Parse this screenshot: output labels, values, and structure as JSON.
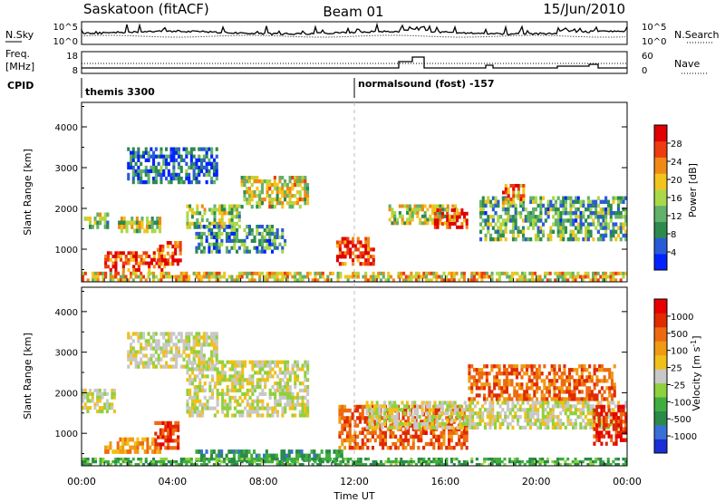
{
  "header": {
    "site": "Saskatoon (fitACF)",
    "beam": "Beam 01",
    "date": "15/Jun/2010"
  },
  "top_panels": {
    "nsky_label": "N.Sky",
    "nsky_ticks": [
      "10^5",
      "10^0"
    ],
    "nsearch_label": "N.Search",
    "freq_label_1": "Freq.",
    "freq_label_2": "[MHz]",
    "freq_ticks": [
      "18",
      "8"
    ],
    "nave_label": "Nave",
    "nave_ticks": [
      "60",
      "0"
    ],
    "cpid_label": "CPID",
    "cpid_1": "themis 3300",
    "cpid_2": "normalsound (fost) -157"
  },
  "chart_data": [
    {
      "type": "heatmap",
      "name": "power",
      "ylabel": "Slant Range [km]",
      "ylim": [
        200,
        4600
      ],
      "yticks": [
        1000,
        2000,
        3000,
        4000
      ],
      "xlim": [
        0,
        24
      ],
      "colorbar": {
        "label": "Power [dB]",
        "ticks": [
          "4",
          "8",
          "12",
          "16",
          "20",
          "24",
          "28"
        ],
        "colors": [
          "#0022ff",
          "#2a5bd6",
          "#2c8a4e",
          "#62b06a",
          "#a9d94a",
          "#f2c41d",
          "#f08a14",
          "#ee3b10",
          "#e00000"
        ]
      },
      "echo_regions": [
        {
          "t0": 0.1,
          "t1": 1.2,
          "r0": 1500,
          "r1": 1900,
          "level": 0.45
        },
        {
          "t0": 1.0,
          "t1": 3.7,
          "r0": 450,
          "r1": 950,
          "level": 0.85
        },
        {
          "t0": 3.3,
          "t1": 4.4,
          "r0": 600,
          "r1": 1200,
          "level": 0.9
        },
        {
          "t0": 1.6,
          "t1": 3.5,
          "r0": 1400,
          "r1": 1800,
          "level": 0.5
        },
        {
          "t0": 4.6,
          "t1": 7.0,
          "r0": 1500,
          "r1": 2100,
          "level": 0.45
        },
        {
          "t0": 7.0,
          "t1": 10.0,
          "r0": 2000,
          "r1": 2800,
          "level": 0.55
        },
        {
          "t0": 5.0,
          "t1": 9.0,
          "r0": 900,
          "r1": 1600,
          "level": 0.3
        },
        {
          "t0": 11.2,
          "t1": 12.9,
          "r0": 600,
          "r1": 1300,
          "level": 0.9
        },
        {
          "t0": 13.5,
          "t1": 16.5,
          "r0": 1600,
          "r1": 2100,
          "level": 0.5
        },
        {
          "t0": 15.5,
          "t1": 17.0,
          "r0": 1500,
          "r1": 2000,
          "level": 0.85
        },
        {
          "t0": 17.5,
          "t1": 24.0,
          "r0": 1200,
          "r1": 2300,
          "level": 0.35
        },
        {
          "t0": 18.5,
          "t1": 19.5,
          "r0": 2100,
          "r1": 2600,
          "level": 0.75
        },
        {
          "t0": 0.0,
          "t1": 24.0,
          "r0": 200,
          "r1": 450,
          "level": 0.6
        },
        {
          "t0": 2.0,
          "t1": 6.0,
          "r0": 2600,
          "r1": 3500,
          "level": 0.2
        }
      ]
    },
    {
      "type": "heatmap",
      "name": "velocity",
      "ylabel": "Slant Range [km]",
      "xlabel": "Time UT",
      "ylim": [
        200,
        4600
      ],
      "yticks": [
        1000,
        2000,
        3000,
        4000
      ],
      "xlim": [
        0,
        24
      ],
      "xticks": [
        "00:00",
        "04:00",
        "08:00",
        "12:00",
        "16:00",
        "20:00",
        "00:00"
      ],
      "colorbar": {
        "label": "Velocity [m s",
        "label_sup": "-1",
        "label_end": "]",
        "ticks": [
          "1000",
          "500",
          "100",
          "25",
          "-25",
          "-100",
          "-500",
          "-1000"
        ],
        "colors": [
          "#1a2fd6",
          "#3a6fd8",
          "#2a8a48",
          "#3fae3f",
          "#8fd13c",
          "#c8c8c8",
          "#f0c018",
          "#f09a14",
          "#ee6a10",
          "#e02a00",
          "#e80000"
        ]
      },
      "echo_regions": [
        {
          "t0": 0.0,
          "t1": 1.5,
          "r0": 1500,
          "r1": 2100,
          "vel": 0.5
        },
        {
          "t0": 1.0,
          "t1": 3.5,
          "r0": 500,
          "r1": 900,
          "vel": 0.68
        },
        {
          "t0": 3.2,
          "t1": 4.3,
          "r0": 600,
          "r1": 1300,
          "vel": 0.85
        },
        {
          "t0": 4.6,
          "t1": 10.0,
          "r0": 1400,
          "r1": 2800,
          "vel": 0.5
        },
        {
          "t0": 5.0,
          "t1": 11.5,
          "r0": 300,
          "r1": 600,
          "vel": 0.25
        },
        {
          "t0": 11.3,
          "t1": 17.0,
          "r0": 600,
          "r1": 1700,
          "vel": 0.8
        },
        {
          "t0": 17.0,
          "t1": 23.5,
          "r0": 1800,
          "r1": 2700,
          "vel": 0.78
        },
        {
          "t0": 12.5,
          "t1": 24.0,
          "r0": 1100,
          "r1": 1800,
          "vel": 0.5
        },
        {
          "t0": 22.5,
          "t1": 24.0,
          "r0": 700,
          "r1": 1700,
          "vel": 0.88
        },
        {
          "t0": 0.0,
          "t1": 24.0,
          "r0": 200,
          "r1": 400,
          "vel": 0.3
        },
        {
          "t0": 2.0,
          "t1": 6.0,
          "r0": 2600,
          "r1": 3500,
          "vel": 0.5
        }
      ]
    }
  ]
}
